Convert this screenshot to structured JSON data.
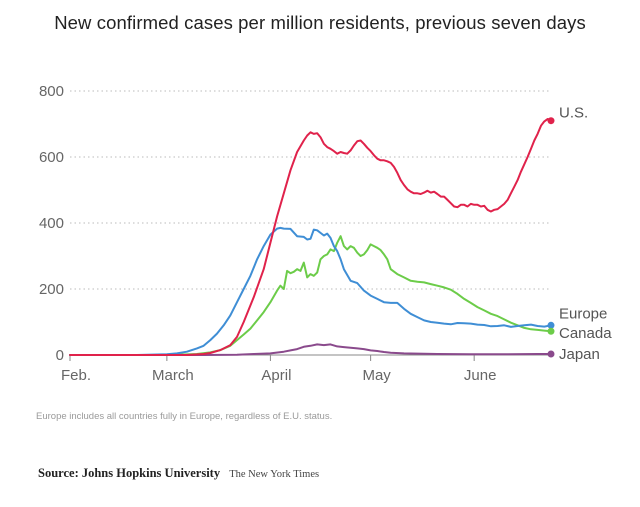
{
  "title": "New confirmed cases per million residents, previous seven days",
  "note": "Europe includes all countries fully in Europe, regardless of E.U. status.",
  "source": {
    "label": "Source: Johns Hopkins University",
    "credit": "The New York Times"
  },
  "chart_data": {
    "type": "line",
    "title": "New confirmed cases per million residents, previous seven days",
    "xlabel": "",
    "ylabel": "",
    "xlim": [
      0,
      144
    ],
    "ylim": [
      0,
      800
    ],
    "yticks": [
      0,
      200,
      400,
      600,
      800
    ],
    "xticks": [
      {
        "label": "Feb.",
        "x": 0
      },
      {
        "label": "March",
        "x": 29
      },
      {
        "label": "April",
        "x": 60
      },
      {
        "label": "May",
        "x": 90
      },
      {
        "label": "June",
        "x": 121
      }
    ],
    "series": [
      {
        "name": "U.S.",
        "color": "#e0224b",
        "label_offset": -8,
        "x": [
          0,
          20,
          35,
          40,
          42,
          45,
          48,
          50,
          52,
          55,
          58,
          60,
          62,
          64,
          66,
          68,
          70,
          71,
          72,
          73,
          74,
          75,
          76,
          77,
          78,
          79,
          80,
          81,
          82,
          83,
          84,
          85,
          86,
          87,
          88,
          89,
          90,
          91,
          92,
          93,
          94,
          95,
          96,
          97,
          98,
          99,
          100,
          101,
          102,
          103,
          104,
          105,
          106,
          107,
          108,
          109,
          110,
          111,
          112,
          113,
          114,
          115,
          116,
          117,
          118,
          119,
          120,
          121,
          122,
          123,
          124,
          125,
          126,
          127,
          128,
          129,
          130,
          131,
          132,
          133,
          134,
          135,
          136,
          137,
          138,
          139,
          140,
          141,
          142,
          143,
          144
        ],
        "values": [
          0,
          0,
          0,
          3,
          6,
          15,
          30,
          55,
          100,
          175,
          260,
          340,
          420,
          490,
          560,
          615,
          650,
          665,
          675,
          670,
          672,
          660,
          640,
          630,
          625,
          618,
          610,
          615,
          612,
          610,
          620,
          635,
          648,
          650,
          640,
          628,
          618,
          605,
          595,
          590,
          590,
          587,
          582,
          570,
          552,
          530,
          515,
          502,
          495,
          490,
          490,
          488,
          492,
          498,
          492,
          495,
          488,
          480,
          480,
          470,
          460,
          450,
          448,
          455,
          455,
          450,
          458,
          455,
          455,
          450,
          452,
          440,
          435,
          440,
          442,
          450,
          458,
          470,
          490,
          510,
          530,
          555,
          578,
          600,
          625,
          650,
          670,
          695,
          708,
          715,
          710
        ]
      },
      {
        "name": "Europe",
        "color": "#3f8ed5",
        "label_offset": -12,
        "x": [
          0,
          20,
          29,
          32,
          35,
          38,
          40,
          42,
          44,
          46,
          48,
          50,
          52,
          54,
          56,
          58,
          60,
          62,
          63,
          64,
          66,
          68,
          70,
          71,
          72,
          73,
          74,
          75,
          76,
          77,
          78,
          79,
          80,
          81,
          82,
          84,
          86,
          88,
          90,
          92,
          94,
          96,
          98,
          100,
          102,
          104,
          106,
          108,
          110,
          112,
          114,
          116,
          118,
          120,
          122,
          124,
          126,
          128,
          130,
          132,
          134,
          136,
          138,
          140,
          142,
          144
        ],
        "values": [
          0,
          0,
          2,
          5,
          10,
          20,
          28,
          45,
          65,
          90,
          120,
          160,
          200,
          240,
          290,
          330,
          365,
          383,
          385,
          383,
          382,
          360,
          358,
          350,
          352,
          380,
          378,
          370,
          362,
          368,
          355,
          330,
          315,
          290,
          260,
          225,
          218,
          195,
          180,
          170,
          160,
          158,
          158,
          140,
          125,
          115,
          105,
          100,
          98,
          95,
          93,
          97,
          96,
          95,
          92,
          91,
          87,
          88,
          90,
          85,
          88,
          90,
          92,
          88,
          86,
          90
        ]
      },
      {
        "name": "Canada",
        "color": "#6ccc49",
        "label_offset": 2,
        "x": [
          0,
          30,
          38,
          42,
          45,
          48,
          50,
          52,
          54,
          56,
          58,
          60,
          62,
          63,
          64,
          65,
          66,
          67,
          68,
          69,
          70,
          71,
          72,
          73,
          74,
          75,
          76,
          77,
          78,
          79,
          80,
          81,
          82,
          83,
          84,
          85,
          86,
          87,
          88,
          89,
          90,
          91,
          92,
          93,
          94,
          95,
          96,
          98,
          100,
          102,
          104,
          106,
          108,
          110,
          112,
          114,
          116,
          118,
          120,
          122,
          124,
          126,
          128,
          130,
          132,
          134,
          136,
          138,
          140,
          142,
          144
        ],
        "values": [
          0,
          0,
          3,
          8,
          15,
          28,
          45,
          62,
          80,
          105,
          130,
          160,
          195,
          210,
          200,
          255,
          248,
          252,
          260,
          255,
          280,
          235,
          245,
          240,
          250,
          290,
          300,
          305,
          320,
          315,
          340,
          360,
          330,
          320,
          330,
          325,
          310,
          300,
          305,
          318,
          335,
          330,
          325,
          318,
          305,
          290,
          260,
          245,
          235,
          225,
          222,
          220,
          215,
          210,
          205,
          198,
          185,
          170,
          158,
          145,
          135,
          125,
          118,
          108,
          98,
          90,
          82,
          78,
          76,
          74,
          72
        ]
      },
      {
        "name": "Japan",
        "color": "#8a4a8c",
        "label_offset": 0,
        "x": [
          0,
          40,
          50,
          55,
          60,
          64,
          66,
          68,
          70,
          72,
          74,
          76,
          78,
          80,
          82,
          84,
          86,
          88,
          90,
          92,
          94,
          96,
          100,
          110,
          120,
          130,
          140,
          144
        ],
        "values": [
          0,
          0,
          1,
          3,
          5,
          10,
          14,
          18,
          25,
          28,
          32,
          30,
          32,
          26,
          24,
          22,
          20,
          18,
          14,
          12,
          9,
          7,
          5,
          3,
          2,
          2,
          3,
          3
        ]
      }
    ]
  }
}
